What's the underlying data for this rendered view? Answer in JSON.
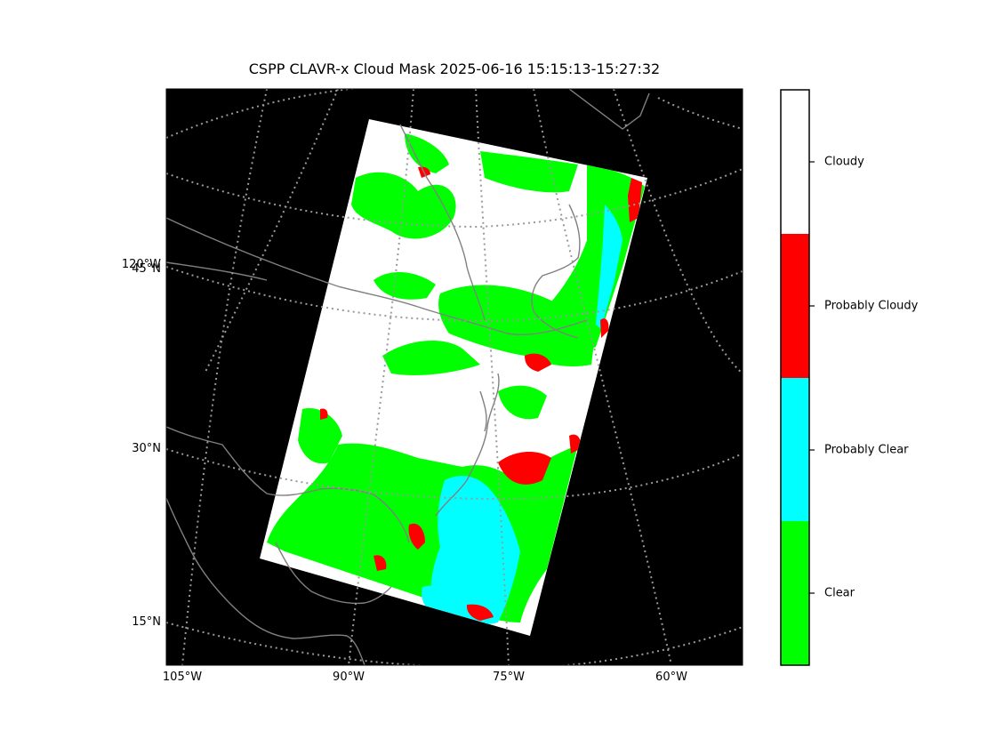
{
  "title": "CSPP CLAVR-x Cloud Mask 2025-06-16 15:15:13-15:27:32",
  "map": {
    "lon_labels": [
      "105°W",
      "90°W",
      "75°W",
      "60°W"
    ],
    "lat_labels": [
      "15°N",
      "30°N",
      "45°N"
    ],
    "extra_label": "120°W"
  },
  "colorbar": {
    "categories": [
      {
        "label": "Cloudy",
        "color": "#ffffff"
      },
      {
        "label": "Probably Cloudy",
        "color": "#ff0000"
      },
      {
        "label": "Probably Clear",
        "color": "#00ffff"
      },
      {
        "label": "Clear",
        "color": "#00ff00"
      }
    ]
  },
  "colors": {
    "background": "#000000",
    "coastline": "#808080",
    "gridline": "#9a9a9a"
  }
}
